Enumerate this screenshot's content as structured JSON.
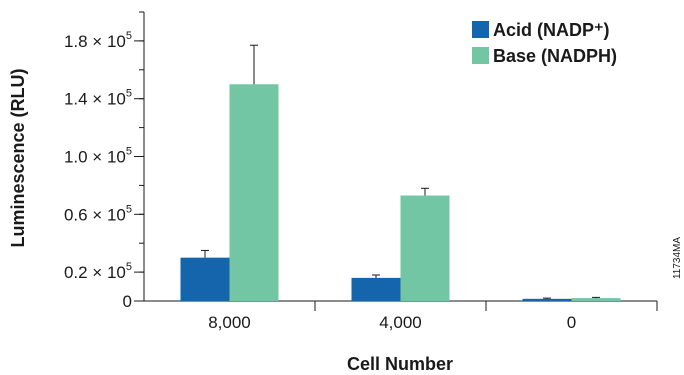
{
  "chart_data": {
    "type": "bar",
    "xlabel": "Cell Number",
    "ylabel": "Luminescence (RLU)",
    "categories": [
      "8,000",
      "4,000",
      "0"
    ],
    "ylim": [
      0,
      200000
    ],
    "y_ticks": [
      {
        "value": 0,
        "label": "0"
      },
      {
        "value": 20000,
        "label": "0.2 × 10",
        "exp": "5"
      },
      {
        "value": 60000,
        "label": "0.6 × 10",
        "exp": "5"
      },
      {
        "value": 100000,
        "label": "1.0 × 10",
        "exp": "5"
      },
      {
        "value": 140000,
        "label": "1.4 × 10",
        "exp": "5"
      },
      {
        "value": 180000,
        "label": "1.8 × 10",
        "exp": "5"
      }
    ],
    "series": [
      {
        "name": "Acid (NADP⁺)",
        "color": "#1565ad",
        "values": [
          30000,
          16000,
          1500
        ],
        "errors": [
          5000,
          2000,
          500
        ]
      },
      {
        "name": "Base (NADPH)",
        "color": "#72c6a4",
        "values": [
          150000,
          73000,
          2000
        ],
        "errors": [
          27000,
          5000,
          500
        ]
      }
    ],
    "legend_position": "top-right",
    "grid": false,
    "figure_id": "11734MA"
  }
}
